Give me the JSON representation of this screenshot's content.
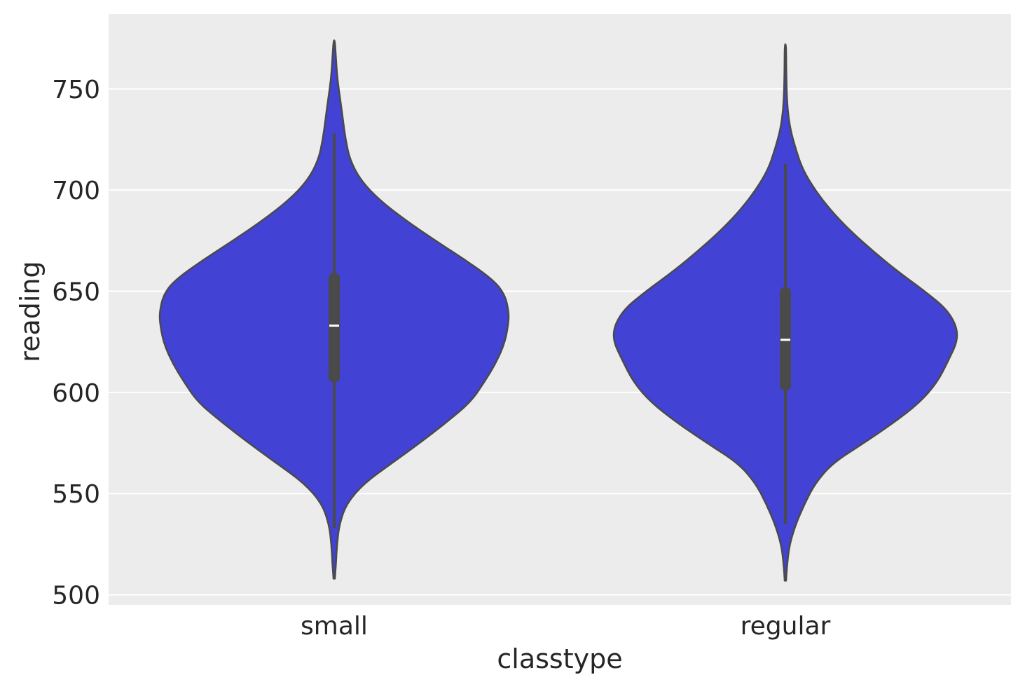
{
  "chart_data": {
    "type": "violin",
    "xlabel": "classtype",
    "ylabel": "reading",
    "categories": [
      "small",
      "regular"
    ],
    "ylim": [
      495,
      787
    ],
    "yticks": [
      500,
      550,
      600,
      650,
      700,
      750
    ],
    "grid": true,
    "colors": {
      "background": "#ececec",
      "grid": "#ffffff",
      "fill": "#4242d4",
      "outline": "#4a4a4a",
      "box": "#4a4a4a",
      "median": "#ffffff"
    },
    "series": [
      {
        "category": "small",
        "min": 508,
        "max": 774,
        "whisker_low": 533,
        "whisker_high": 728,
        "q1": 605,
        "median": 633,
        "q3": 659,
        "density": [
          [
            508,
            0.004
          ],
          [
            515,
            0.01
          ],
          [
            525,
            0.016
          ],
          [
            535,
            0.03
          ],
          [
            545,
            0.07
          ],
          [
            555,
            0.17
          ],
          [
            565,
            0.33
          ],
          [
            575,
            0.49
          ],
          [
            585,
            0.64
          ],
          [
            595,
            0.78
          ],
          [
            605,
            0.86
          ],
          [
            615,
            0.93
          ],
          [
            625,
            0.98
          ],
          [
            635,
            1.0
          ],
          [
            640,
            1.0
          ],
          [
            648,
            0.98
          ],
          [
            655,
            0.92
          ],
          [
            665,
            0.76
          ],
          [
            675,
            0.58
          ],
          [
            685,
            0.41
          ],
          [
            695,
            0.26
          ],
          [
            705,
            0.15
          ],
          [
            715,
            0.09
          ],
          [
            725,
            0.065
          ],
          [
            735,
            0.05
          ],
          [
            745,
            0.034
          ],
          [
            755,
            0.018
          ],
          [
            765,
            0.01
          ],
          [
            774,
            0.004
          ]
        ]
      },
      {
        "category": "regular",
        "min": 507,
        "max": 772,
        "whisker_low": 535,
        "whisker_high": 713,
        "q1": 601,
        "median": 626,
        "q3": 652,
        "density": [
          [
            507,
            0.004
          ],
          [
            515,
            0.01
          ],
          [
            525,
            0.024
          ],
          [
            535,
            0.06
          ],
          [
            545,
            0.11
          ],
          [
            555,
            0.17
          ],
          [
            565,
            0.27
          ],
          [
            575,
            0.45
          ],
          [
            585,
            0.62
          ],
          [
            595,
            0.77
          ],
          [
            605,
            0.87
          ],
          [
            615,
            0.93
          ],
          [
            628,
            1.0
          ],
          [
            640,
            0.94
          ],
          [
            650,
            0.8
          ],
          [
            660,
            0.64
          ],
          [
            670,
            0.5
          ],
          [
            680,
            0.37
          ],
          [
            690,
            0.26
          ],
          [
            700,
            0.17
          ],
          [
            710,
            0.1
          ],
          [
            720,
            0.06
          ],
          [
            730,
            0.028
          ],
          [
            740,
            0.012
          ],
          [
            750,
            0.007
          ],
          [
            760,
            0.005
          ],
          [
            772,
            0.004
          ]
        ]
      }
    ]
  }
}
